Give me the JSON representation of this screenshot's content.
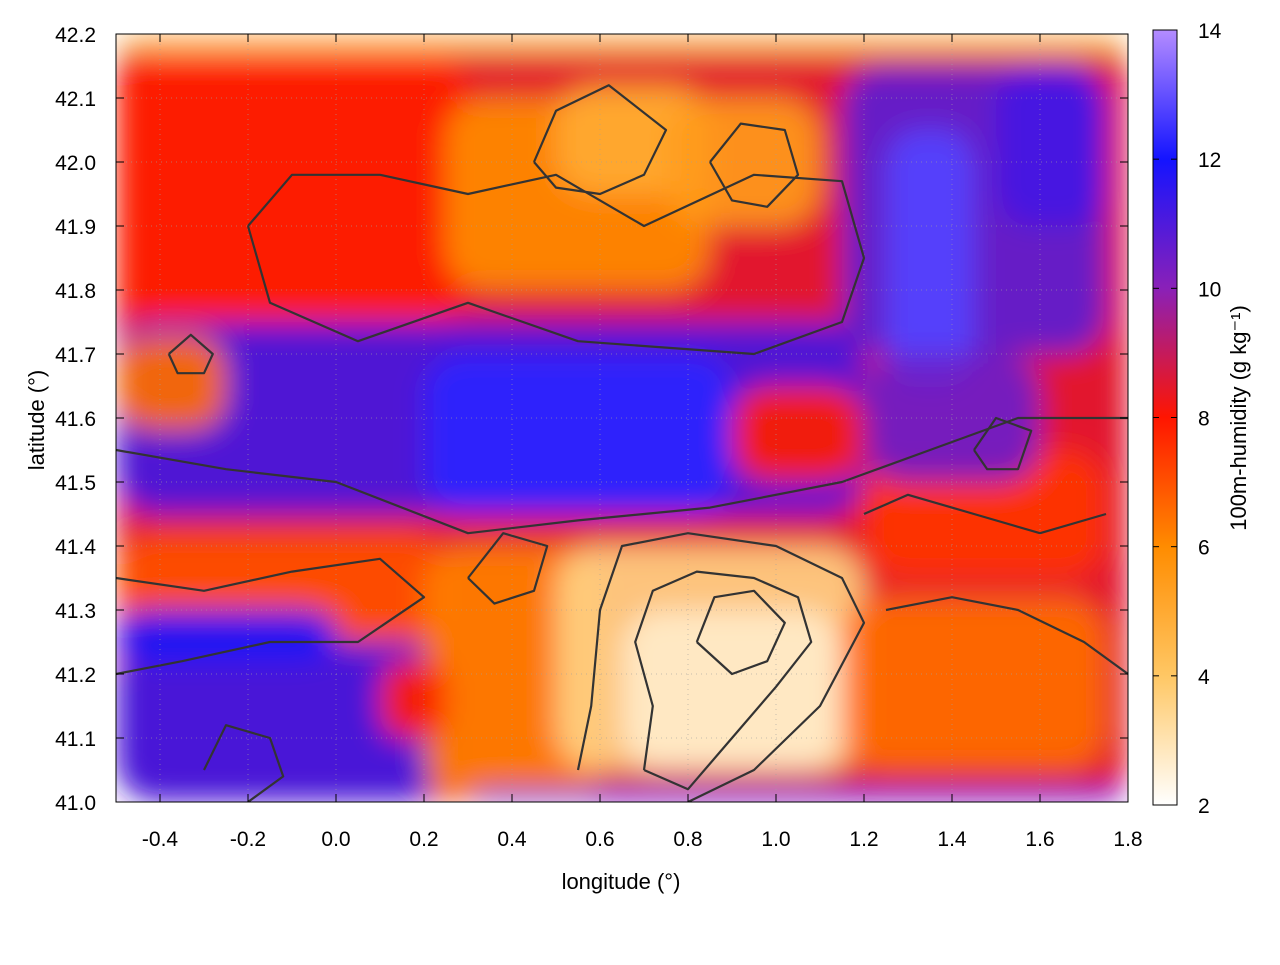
{
  "chart_data": {
    "type": "heatmap",
    "xlabel": "longitude (°)",
    "ylabel": "latitude (°)",
    "colorbar_label": "100m-humidity (g kg⁻¹)",
    "xlim": [
      -0.5,
      1.8
    ],
    "ylim": [
      41.0,
      42.2
    ],
    "x_ticks": [
      -0.4,
      -0.2,
      0.0,
      0.2,
      0.4,
      0.6,
      0.8,
      1.0,
      1.2,
      1.4,
      1.6,
      1.8
    ],
    "x_tick_labels": [
      "-0.4",
      "-0.2",
      "0.0",
      "0.2",
      "0.4",
      "0.6",
      "0.8",
      "1.0",
      "1.2",
      "1.4",
      "1.6",
      "1.8"
    ],
    "y_ticks": [
      41.0,
      41.1,
      41.2,
      41.3,
      41.4,
      41.5,
      41.6,
      41.7,
      41.8,
      41.9,
      42.0,
      42.1,
      42.2
    ],
    "y_tick_labels": [
      "41.0",
      "41.1",
      "41.2",
      "41.3",
      "41.4",
      "41.5",
      "41.6",
      "41.7",
      "41.8",
      "41.9",
      "42.0",
      "42.1",
      "42.2"
    ],
    "colorbar_range": [
      2,
      14
    ],
    "colorbar_ticks": [
      2,
      4,
      6,
      8,
      10,
      12,
      14
    ],
    "colorbar_tick_labels": [
      "2",
      "4",
      "6",
      "8",
      "10",
      "12",
      "14"
    ],
    "colormap_stops": [
      {
        "value": 2,
        "color": "#ffffff"
      },
      {
        "value": 4,
        "color": "#ffc764"
      },
      {
        "value": 6,
        "color": "#ff8c00"
      },
      {
        "value": 8,
        "color": "#ff1500"
      },
      {
        "value": 10,
        "color": "#8a20b8"
      },
      {
        "value": 12,
        "color": "#1414ff"
      },
      {
        "value": 14,
        "color": "#b48cff"
      }
    ],
    "contour_color": "#333333",
    "grid": "dotted",
    "regions": [
      {
        "x": [
          -0.5,
          1.8
        ],
        "y": [
          41.0,
          42.2
        ],
        "value": 8.5
      },
      {
        "x": [
          -0.5,
          0.3
        ],
        "y": [
          41.75,
          42.17
        ],
        "value": 7.8
      },
      {
        "x": [
          0.25,
          0.85
        ],
        "y": [
          41.8,
          42.1
        ],
        "value": 6.0
      },
      {
        "x": [
          0.5,
          0.85
        ],
        "y": [
          41.95,
          42.12
        ],
        "value": 5.0
      },
      {
        "x": [
          0.75,
          1.1
        ],
        "y": [
          41.9,
          42.1
        ],
        "value": 5.5
      },
      {
        "x": [
          1.15,
          1.75
        ],
        "y": [
          41.7,
          42.15
        ],
        "value": 10.8
      },
      {
        "x": [
          1.25,
          1.45
        ],
        "y": [
          41.65,
          42.05
        ],
        "value": 12.8
      },
      {
        "x": [
          1.5,
          1.75
        ],
        "y": [
          41.9,
          42.15
        ],
        "value": 11.2
      },
      {
        "x": [
          -0.5,
          1.2
        ],
        "y": [
          41.45,
          41.75
        ],
        "value": 11.2
      },
      {
        "x": [
          0.2,
          0.9
        ],
        "y": [
          41.45,
          41.7
        ],
        "value": 12.3
      },
      {
        "x": [
          -0.5,
          -0.25
        ],
        "y": [
          41.58,
          41.73
        ],
        "value": 6.5
      },
      {
        "x": [
          -0.5,
          0.25
        ],
        "y": [
          41.25,
          41.42
        ],
        "value": 7.0
      },
      {
        "x": [
          -0.5,
          0.25
        ],
        "y": [
          41.0,
          41.25
        ],
        "value": 11.3
      },
      {
        "x": [
          -0.5,
          0.0
        ],
        "y": [
          41.22,
          41.3
        ],
        "value": 12.0
      },
      {
        "x": [
          0.2,
          0.6
        ],
        "y": [
          41.0,
          41.4
        ],
        "value": 6.2
      },
      {
        "x": [
          0.1,
          0.25
        ],
        "y": [
          41.1,
          41.22
        ],
        "value": 7.8
      },
      {
        "x": [
          0.5,
          1.2
        ],
        "y": [
          41.05,
          41.4
        ],
        "value": 3.6
      },
      {
        "x": [
          0.65,
          1.15
        ],
        "y": [
          41.05,
          41.3
        ],
        "value": 2.7
      },
      {
        "x": [
          1.15,
          1.75
        ],
        "y": [
          41.05,
          41.32
        ],
        "value": 6.5
      },
      {
        "x": [
          1.2,
          1.75
        ],
        "y": [
          41.35,
          41.55
        ],
        "value": 7.5
      },
      {
        "x": [
          0.9,
          1.2
        ],
        "y": [
          41.5,
          41.65
        ],
        "value": 7.8
      },
      {
        "x": [
          1.2,
          1.6
        ],
        "y": [
          41.5,
          41.7
        ],
        "value": 10.5
      },
      {
        "x": [
          0.3,
          1.8
        ],
        "y": [
          41.0,
          41.02
        ],
        "value": 11.5
      },
      {
        "x": [
          -0.5,
          1.8
        ],
        "y": [
          42.17,
          42.2
        ],
        "value": 4.0
      }
    ],
    "contours": [
      [
        [
          -0.2,
          41.9
        ],
        [
          -0.15,
          41.78
        ],
        [
          0.05,
          41.72
        ],
        [
          0.3,
          41.78
        ],
        [
          0.55,
          41.72
        ],
        [
          0.95,
          41.7
        ],
        [
          1.15,
          41.75
        ],
        [
          1.2,
          41.85
        ],
        [
          1.15,
          41.97
        ],
        [
          0.95,
          41.98
        ],
        [
          0.7,
          41.9
        ],
        [
          0.5,
          41.98
        ],
        [
          0.3,
          41.95
        ],
        [
          0.1,
          41.98
        ],
        [
          -0.1,
          41.98
        ],
        [
          -0.2,
          41.9
        ]
      ],
      [
        [
          -0.5,
          41.55
        ],
        [
          -0.25,
          41.52
        ],
        [
          0.0,
          41.5
        ],
        [
          0.3,
          41.42
        ],
        [
          0.55,
          41.44
        ],
        [
          0.85,
          41.46
        ],
        [
          1.15,
          41.5
        ],
        [
          1.35,
          41.55
        ],
        [
          1.55,
          41.6
        ],
        [
          1.8,
          41.6
        ]
      ],
      [
        [
          0.7,
          41.05
        ],
        [
          0.72,
          41.15
        ],
        [
          0.68,
          41.25
        ],
        [
          0.72,
          41.33
        ],
        [
          0.82,
          41.36
        ],
        [
          0.95,
          41.35
        ],
        [
          1.05,
          41.32
        ],
        [
          1.08,
          41.25
        ],
        [
          1.0,
          41.18
        ],
        [
          0.9,
          41.1
        ],
        [
          0.8,
          41.02
        ],
        [
          0.7,
          41.05
        ]
      ],
      [
        [
          0.82,
          41.25
        ],
        [
          0.86,
          41.32
        ],
        [
          0.95,
          41.33
        ],
        [
          1.02,
          41.28
        ],
        [
          0.98,
          41.22
        ],
        [
          0.9,
          41.2
        ],
        [
          0.82,
          41.25
        ]
      ],
      [
        [
          0.55,
          41.05
        ],
        [
          0.58,
          41.15
        ],
        [
          0.6,
          41.3
        ],
        [
          0.65,
          41.4
        ],
        [
          0.8,
          41.42
        ],
        [
          1.0,
          41.4
        ],
        [
          1.15,
          41.35
        ],
        [
          1.2,
          41.28
        ],
        [
          1.1,
          41.15
        ],
        [
          0.95,
          41.05
        ],
        [
          0.8,
          41.0
        ]
      ],
      [
        [
          0.45,
          42.0
        ],
        [
          0.5,
          42.08
        ],
        [
          0.62,
          42.12
        ],
        [
          0.75,
          42.05
        ],
        [
          0.7,
          41.98
        ],
        [
          0.6,
          41.95
        ],
        [
          0.5,
          41.96
        ],
        [
          0.45,
          42.0
        ]
      ],
      [
        [
          0.85,
          42.0
        ],
        [
          0.92,
          42.06
        ],
        [
          1.02,
          42.05
        ],
        [
          1.05,
          41.98
        ],
        [
          0.98,
          41.93
        ],
        [
          0.9,
          41.94
        ],
        [
          0.85,
          42.0
        ]
      ],
      [
        [
          -0.38,
          41.7
        ],
        [
          -0.33,
          41.73
        ],
        [
          -0.28,
          41.7
        ],
        [
          -0.3,
          41.67
        ],
        [
          -0.36,
          41.67
        ],
        [
          -0.38,
          41.7
        ]
      ],
      [
        [
          -0.5,
          41.35
        ],
        [
          -0.3,
          41.33
        ],
        [
          -0.1,
          41.36
        ],
        [
          0.1,
          41.38
        ],
        [
          0.2,
          41.32
        ],
        [
          0.05,
          41.25
        ],
        [
          -0.15,
          41.25
        ],
        [
          -0.35,
          41.22
        ],
        [
          -0.5,
          41.2
        ]
      ],
      [
        [
          1.45,
          41.55
        ],
        [
          1.5,
          41.6
        ],
        [
          1.58,
          41.58
        ],
        [
          1.55,
          41.52
        ],
        [
          1.48,
          41.52
        ],
        [
          1.45,
          41.55
        ]
      ],
      [
        [
          -0.3,
          41.05
        ],
        [
          -0.25,
          41.12
        ],
        [
          -0.15,
          41.1
        ],
        [
          -0.12,
          41.04
        ],
        [
          -0.2,
          41.0
        ]
      ],
      [
        [
          1.25,
          41.3
        ],
        [
          1.4,
          41.32
        ],
        [
          1.55,
          41.3
        ],
        [
          1.7,
          41.25
        ],
        [
          1.8,
          41.2
        ]
      ],
      [
        [
          0.3,
          41.35
        ],
        [
          0.38,
          41.42
        ],
        [
          0.48,
          41.4
        ],
        [
          0.45,
          41.33
        ],
        [
          0.36,
          41.31
        ],
        [
          0.3,
          41.35
        ]
      ],
      [
        [
          1.2,
          41.45
        ],
        [
          1.3,
          41.48
        ],
        [
          1.45,
          41.45
        ],
        [
          1.6,
          41.42
        ],
        [
          1.75,
          41.45
        ]
      ]
    ]
  }
}
